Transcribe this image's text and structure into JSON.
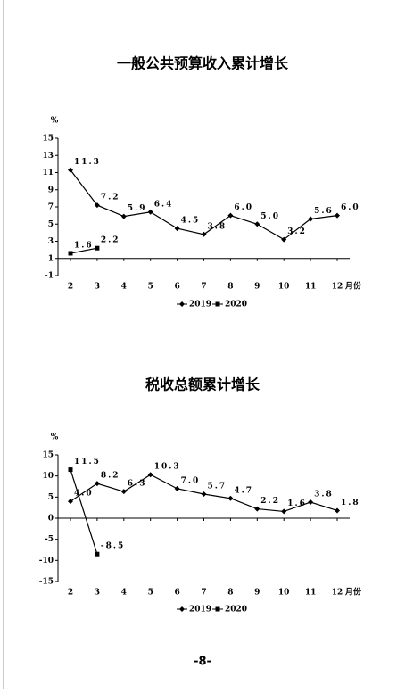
{
  "chart_data": [
    {
      "type": "line",
      "title": "一般公共预算收入累计增长",
      "y_label": "%",
      "x_label": "月份",
      "categories": [
        "2",
        "3",
        "4",
        "5",
        "6",
        "7",
        "8",
        "9",
        "10",
        "11",
        "12"
      ],
      "series": [
        {
          "name": "2019",
          "color": "#000000",
          "marker": "diamond",
          "values": [
            11.3,
            7.2,
            5.9,
            6.4,
            4.5,
            3.8,
            6.0,
            5.0,
            3.2,
            5.6,
            6.0
          ],
          "value_labels": [
            "11.3",
            "7.2",
            "5.9",
            "6.4",
            "4.5",
            "3.8",
            "6.0",
            "5.0",
            "3.2",
            "5.6",
            "6.0"
          ]
        },
        {
          "name": "2020",
          "color": "#000000",
          "marker": "square",
          "values": [
            1.6,
            2.2,
            null,
            null,
            null,
            null,
            null,
            null,
            null,
            null,
            null
          ],
          "value_labels": [
            "1.6",
            "2.2",
            null,
            null,
            null,
            null,
            null,
            null,
            null,
            null,
            null
          ]
        }
      ],
      "ylim": [
        -1,
        15
      ],
      "yticks": [
        -1,
        1,
        3,
        5,
        7,
        9,
        11,
        13,
        15
      ]
    },
    {
      "type": "line",
      "title": "税收总额累计增长",
      "y_label": "%",
      "x_label": "月份",
      "categories": [
        "2",
        "3",
        "4",
        "5",
        "6",
        "7",
        "8",
        "9",
        "10",
        "11",
        "12"
      ],
      "series": [
        {
          "name": "2019",
          "color": "#000000",
          "marker": "diamond",
          "values": [
            4.0,
            8.2,
            6.3,
            10.3,
            7.0,
            5.7,
            4.7,
            2.2,
            1.6,
            3.8,
            1.8
          ],
          "value_labels": [
            "4.0",
            "8.2",
            "6.3",
            "10.3",
            "7.0",
            "5.7",
            "4.7",
            "2.2",
            "1.6",
            "3.8",
            "1.8"
          ]
        },
        {
          "name": "2020",
          "color": "#000000",
          "marker": "square",
          "values": [
            11.5,
            -8.5,
            null,
            null,
            null,
            null,
            null,
            null,
            null,
            null,
            null
          ],
          "value_labels": [
            "11.5",
            "-8.5",
            null,
            null,
            null,
            null,
            null,
            null,
            null,
            null,
            null
          ]
        }
      ],
      "ylim": [
        -15,
        15
      ],
      "yticks": [
        -15,
        -10,
        -5,
        0,
        5,
        10,
        15
      ]
    }
  ],
  "footer": "-8-"
}
